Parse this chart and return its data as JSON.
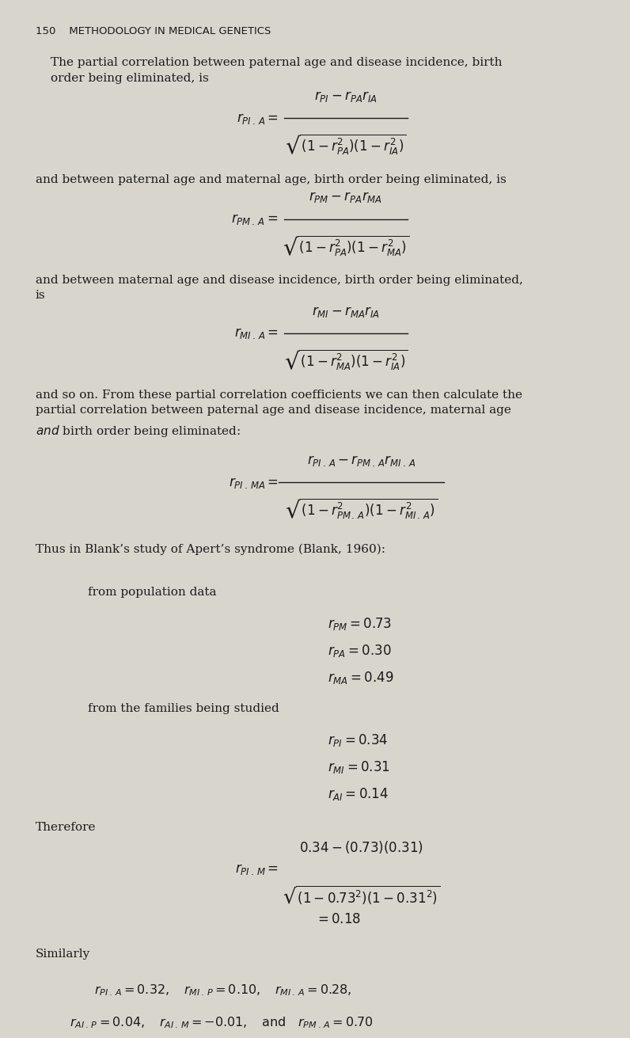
{
  "bg_color": "#d8d5cd",
  "text_color": "#1a1a1a",
  "page_width": 8.0,
  "page_height": 12.8,
  "header": "150    METHODOLOGY IN MEDICAL GENETICS",
  "para1": "The partial correlation between paternal age and disease incidence, birth\norder being eliminated, is",
  "para2": "and between paternal age and maternal age, birth order being eliminated, is",
  "para3": "and between maternal age and disease incidence, birth order being eliminated,\nis",
  "para4a": "and so on. From these partial correlation coefficients we can then calculate the\npartial correlation between paternal age and disease incidence, maternal age",
  "para4b": "and birth order being eliminated:",
  "para5": "Thus in Blank’s study of Apert’s syndrome (Blank, 1960):",
  "pop_label": "from population data",
  "fam_label": "from the families being studied",
  "therefore_label": "Therefore",
  "similarly_label": "Similarly",
  "sim_line1": "$r_{PI\\, .\\, A} = 0.32, \\quad r_{MI\\, .\\, P} = 0.10, \\quad r_{MI\\, .\\, A} = 0.28,$",
  "sim_line2": "$r_{AI\\, .\\, P} = 0.04, \\quad r_{AI\\, .\\, M} = -0.01, \\quad \\mathrm{and} \\quad r_{PM\\, .\\, A} = 0.70$"
}
